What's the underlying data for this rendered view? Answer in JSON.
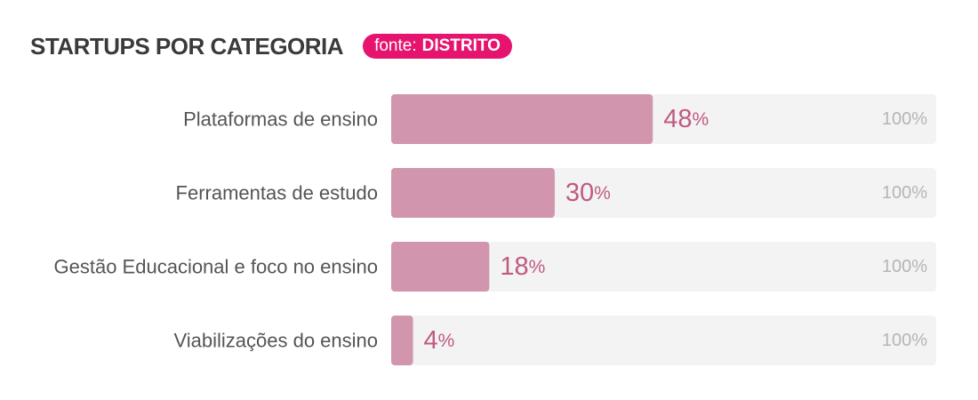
{
  "header": {
    "title": "STARTUPS POR CATEGORIA",
    "source_prefix": "fonte:",
    "source_name": "DISTRITO"
  },
  "colors": {
    "bar": "#d195ae",
    "track": "#f3f3f3",
    "value_text": "#c05a82",
    "badge": "#e6146e"
  },
  "chart_data": {
    "type": "bar",
    "orientation": "horizontal",
    "title": "STARTUPS POR CATEGORIA",
    "categories": [
      "Plataformas de ensino",
      "Ferramentas de estudo",
      "Gestão Educacional e foco no ensino",
      "Viabilizações do ensino"
    ],
    "values": [
      48,
      30,
      18,
      4
    ],
    "unit": "%",
    "max_label": "100%",
    "xlim": [
      0,
      100
    ],
    "grid": false,
    "legend": "none"
  }
}
